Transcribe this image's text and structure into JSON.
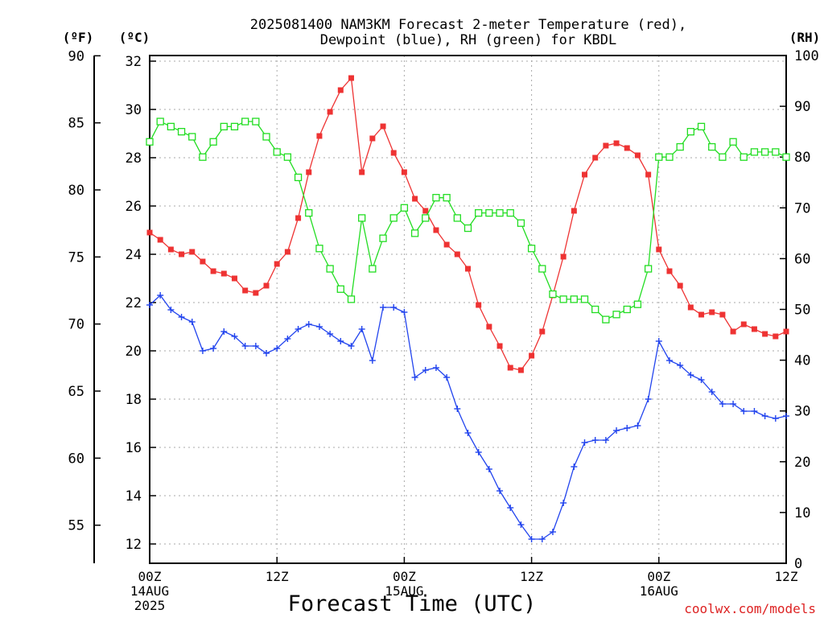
{
  "title_line1": "2025081400 NAM3KM Forecast 2-meter Temperature (red),",
  "title_line2": "Dewpoint (blue), RH (green) for KBDL",
  "xlabel": "Forecast Time (UTC)",
  "credit": "coolwx.com/models",
  "unit_f": "(ºF)",
  "unit_c": "(ºC)",
  "unit_rh": "(RH)",
  "colors": {
    "temperature": "#ee3333",
    "dewpoint": "#2244ee",
    "rh": "#22dd22",
    "grid": "#aaaaaa",
    "credit": "#dd2222"
  },
  "chart_data": {
    "type": "line",
    "x": [
      0,
      1,
      2,
      3,
      4,
      5,
      6,
      7,
      8,
      9,
      10,
      11,
      12,
      13,
      14,
      15,
      16,
      17,
      18,
      19,
      20,
      21,
      22,
      23,
      24,
      25,
      26,
      27,
      28,
      29,
      30,
      31,
      32,
      33,
      34,
      35,
      36,
      37,
      38,
      39,
      40,
      41,
      42,
      43,
      44,
      45,
      46,
      47,
      48,
      49,
      50,
      51,
      52,
      53,
      54,
      55,
      56,
      57,
      58,
      59,
      60
    ],
    "x_unit": "hours from 2025-08-14 00Z",
    "xlim": [
      0,
      60
    ],
    "xticks": [
      {
        "x": 0,
        "labels": [
          "00Z",
          "14AUG",
          "2025"
        ]
      },
      {
        "x": 12,
        "labels": [
          "12Z"
        ]
      },
      {
        "x": 24,
        "labels": [
          "00Z",
          "15AUG"
        ]
      },
      {
        "x": 36,
        "labels": [
          "12Z"
        ]
      },
      {
        "x": 48,
        "labels": [
          "00Z",
          "16AUG"
        ]
      },
      {
        "x": 60,
        "labels": [
          "12Z"
        ]
      }
    ],
    "y_celsius": {
      "range": [
        11.2,
        32.3
      ],
      "ticks": [
        12,
        14,
        16,
        18,
        20,
        22,
        24,
        26,
        28,
        30,
        32
      ]
    },
    "y_fahrenheit": {
      "ticks": [
        55,
        60,
        65,
        70,
        75,
        80,
        85,
        90
      ]
    },
    "y_rh": {
      "range": [
        0,
        100
      ],
      "ticks": [
        0,
        10,
        20,
        30,
        40,
        50,
        60,
        70,
        80,
        90,
        100
      ]
    },
    "grid": true,
    "series": [
      {
        "name": "Temperature",
        "axis": "celsius",
        "marker": "filled-square",
        "values": [
          24.9,
          24.6,
          24.2,
          24.0,
          24.1,
          23.7,
          23.3,
          23.2,
          23.0,
          22.5,
          22.4,
          22.7,
          23.6,
          24.1,
          25.5,
          27.4,
          28.9,
          29.9,
          30.8,
          31.3,
          27.4,
          28.8,
          29.3,
          28.2,
          27.4,
          26.3,
          25.8,
          25.0,
          24.4,
          24.0,
          23.4,
          21.9,
          21.0,
          20.2,
          19.3,
          19.2,
          19.8,
          20.8,
          22.3,
          23.9,
          25.8,
          27.3,
          28.0,
          28.5,
          28.6,
          28.4,
          28.1,
          27.3,
          24.2,
          23.3,
          22.7,
          21.8,
          21.5,
          21.6,
          21.5,
          20.8,
          21.1,
          20.9,
          20.7,
          20.6,
          20.8
        ]
      },
      {
        "name": "Dewpoint",
        "axis": "celsius",
        "marker": "plus",
        "values": [
          21.9,
          22.3,
          21.7,
          21.4,
          21.2,
          20.0,
          20.1,
          20.8,
          20.6,
          20.2,
          20.2,
          19.9,
          20.1,
          20.5,
          20.9,
          21.1,
          21.0,
          20.7,
          20.4,
          20.2,
          20.9,
          19.6,
          21.8,
          21.8,
          21.6,
          18.9,
          19.2,
          19.3,
          18.9,
          17.6,
          16.6,
          15.8,
          15.1,
          14.2,
          13.5,
          12.8,
          12.2,
          12.2,
          12.5,
          13.7,
          15.2,
          16.2,
          16.3,
          16.3,
          16.7,
          16.8,
          16.9,
          18.0,
          20.4,
          19.6,
          19.4,
          19.0,
          18.8,
          18.3,
          17.8,
          17.8,
          17.5,
          17.5,
          17.3,
          17.2,
          17.3
        ]
      },
      {
        "name": "RH",
        "axis": "rh",
        "marker": "open-square",
        "values": [
          83,
          87,
          86,
          85,
          84,
          80,
          83,
          86,
          86,
          87,
          87,
          84,
          81,
          80,
          76,
          69,
          62,
          58,
          54,
          52,
          68,
          58,
          64,
          68,
          70,
          65,
          68,
          72,
          72,
          68,
          66,
          69,
          69,
          69,
          69,
          67,
          62,
          58,
          53,
          52,
          52,
          52,
          50,
          48,
          49,
          50,
          51,
          58,
          80,
          80,
          82,
          85,
          86,
          82,
          80,
          83,
          80,
          81,
          81,
          81,
          80
        ]
      }
    ]
  }
}
